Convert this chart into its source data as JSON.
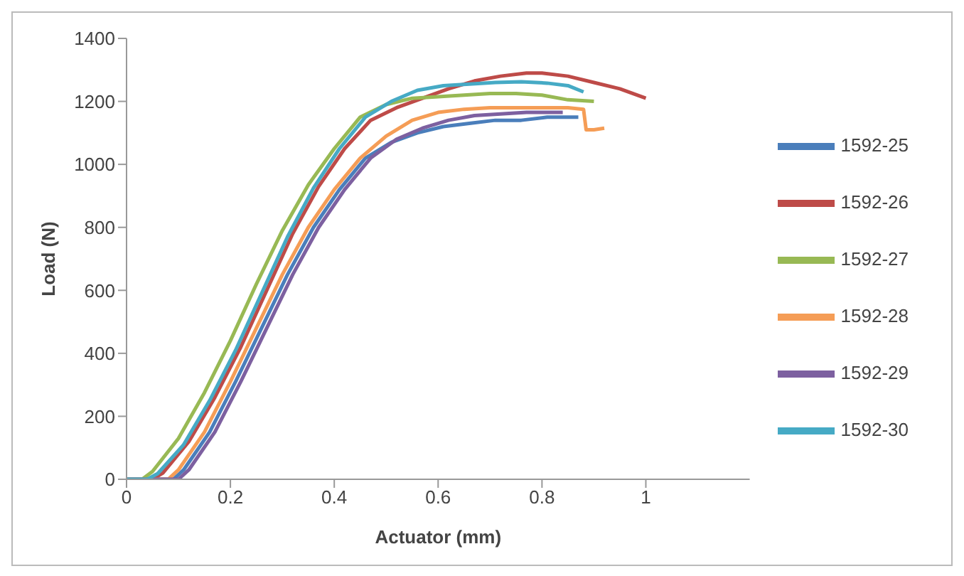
{
  "chart_data": {
    "type": "line",
    "xlabel": "Actuator (mm)",
    "ylabel": "Load (N)",
    "xlim": [
      0,
      1.2
    ],
    "xticks": [
      0,
      0.2,
      0.4,
      0.6,
      0.8,
      1
    ],
    "ylim": [
      0,
      1400
    ],
    "yticks": [
      0,
      200,
      400,
      600,
      800,
      1000,
      1200,
      1400
    ],
    "grid": false,
    "legend": "right",
    "marker": "none",
    "series": [
      {
        "name": "1592-25",
        "color": "#4a7ebb",
        "x": [
          0,
          0.06,
          0.09,
          0.11,
          0.16,
          0.21,
          0.26,
          0.31,
          0.36,
          0.41,
          0.46,
          0.51,
          0.56,
          0.61,
          0.66,
          0.71,
          0.76,
          0.81,
          0.85,
          0.87
        ],
        "values": [
          0,
          0,
          0,
          30,
          150,
          310,
          480,
          650,
          800,
          920,
          1020,
          1070,
          1100,
          1120,
          1130,
          1140,
          1140,
          1150,
          1150,
          1150
        ]
      },
      {
        "name": "1592-26",
        "color": "#be4b48",
        "x": [
          0,
          0.05,
          0.07,
          0.12,
          0.17,
          0.22,
          0.27,
          0.32,
          0.37,
          0.42,
          0.47,
          0.52,
          0.57,
          0.62,
          0.67,
          0.72,
          0.77,
          0.8,
          0.85,
          0.9,
          0.95,
          1.0
        ],
        "values": [
          0,
          0,
          20,
          120,
          260,
          420,
          600,
          780,
          930,
          1050,
          1140,
          1180,
          1210,
          1240,
          1265,
          1280,
          1290,
          1290,
          1280,
          1260,
          1240,
          1210
        ]
      },
      {
        "name": "1592-27",
        "color": "#98b954",
        "x": [
          0,
          0.03,
          0.05,
          0.1,
          0.15,
          0.2,
          0.25,
          0.3,
          0.35,
          0.4,
          0.45,
          0.5,
          0.55,
          0.6,
          0.65,
          0.7,
          0.75,
          0.8,
          0.85,
          0.9
        ],
        "values": [
          0,
          0,
          25,
          130,
          275,
          440,
          620,
          790,
          935,
          1050,
          1150,
          1190,
          1210,
          1215,
          1220,
          1225,
          1225,
          1220,
          1205,
          1200
        ]
      },
      {
        "name": "1592-28",
        "color": "#f59d56",
        "x": [
          0,
          0.06,
          0.08,
          0.1,
          0.15,
          0.2,
          0.25,
          0.3,
          0.35,
          0.4,
          0.45,
          0.5,
          0.55,
          0.6,
          0.65,
          0.7,
          0.75,
          0.8,
          0.85,
          0.88,
          0.885,
          0.9,
          0.92
        ],
        "values": [
          0,
          0,
          0,
          30,
          150,
          310,
          480,
          650,
          800,
          920,
          1020,
          1090,
          1140,
          1165,
          1175,
          1180,
          1180,
          1180,
          1180,
          1175,
          1110,
          1110,
          1115
        ]
      },
      {
        "name": "1592-29",
        "color": "#7d60a0",
        "x": [
          0,
          0.07,
          0.1,
          0.12,
          0.17,
          0.22,
          0.27,
          0.32,
          0.37,
          0.42,
          0.47,
          0.52,
          0.57,
          0.62,
          0.67,
          0.72,
          0.77,
          0.82,
          0.84
        ],
        "values": [
          0,
          0,
          0,
          30,
          150,
          310,
          480,
          650,
          800,
          920,
          1020,
          1080,
          1115,
          1140,
          1155,
          1160,
          1165,
          1165,
          1165
        ]
      },
      {
        "name": "1592-30",
        "color": "#46aac5",
        "x": [
          0,
          0.04,
          0.06,
          0.11,
          0.16,
          0.21,
          0.26,
          0.31,
          0.36,
          0.41,
          0.46,
          0.51,
          0.56,
          0.61,
          0.66,
          0.71,
          0.76,
          0.81,
          0.85,
          0.88
        ],
        "values": [
          0,
          0,
          18,
          110,
          250,
          410,
          590,
          770,
          925,
          1050,
          1150,
          1200,
          1235,
          1250,
          1255,
          1260,
          1262,
          1258,
          1250,
          1230
        ]
      }
    ]
  }
}
